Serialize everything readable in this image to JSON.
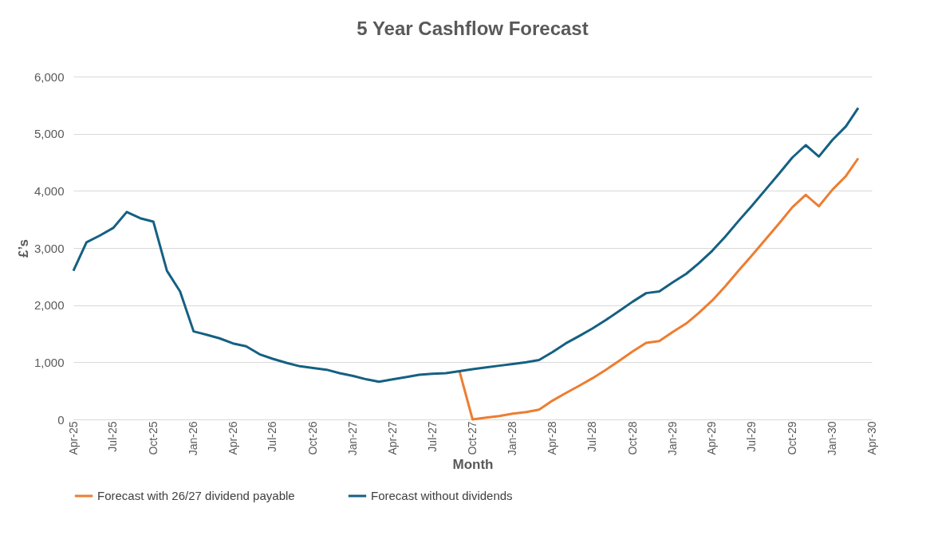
{
  "chart_data": {
    "type": "line",
    "title": "5 Year Cashflow Forecast",
    "xlabel": "Month",
    "ylabel": "£’s",
    "x": [
      "2025-04",
      "2025-05",
      "2025-06",
      "2025-07",
      "2025-08",
      "2025-09",
      "2025-10",
      "2025-11",
      "2025-12",
      "2026-01",
      "2026-02",
      "2026-03",
      "2026-04",
      "2026-05",
      "2026-06",
      "2026-07",
      "2026-08",
      "2026-09",
      "2026-10",
      "2026-11",
      "2026-12",
      "2027-01",
      "2027-02",
      "2027-03",
      "2027-04",
      "2027-05",
      "2027-06",
      "2027-07",
      "2027-08",
      "2027-09",
      "2027-10",
      "2027-11",
      "2027-12",
      "2028-01",
      "2028-02",
      "2028-03",
      "2028-04",
      "2028-05",
      "2028-06",
      "2028-07",
      "2028-08",
      "2028-09",
      "2028-10",
      "2028-11",
      "2028-12",
      "2029-01",
      "2029-02",
      "2029-03",
      "2029-04",
      "2029-05",
      "2029-06",
      "2029-07",
      "2029-08",
      "2029-09",
      "2029-10",
      "2029-11",
      "2029-12",
      "2030-01",
      "2030-02",
      "2030-03"
    ],
    "series": [
      {
        "name": "Forecast with 26/27 dividend payable",
        "color": "#ed7d31",
        "values": [
          null,
          null,
          null,
          null,
          null,
          null,
          null,
          null,
          null,
          null,
          null,
          null,
          null,
          null,
          null,
          null,
          null,
          null,
          null,
          null,
          null,
          null,
          null,
          null,
          null,
          null,
          null,
          null,
          null,
          845,
          0,
          30,
          60,
          100,
          130,
          170,
          330,
          460,
          590,
          720,
          870,
          1030,
          1190,
          1340,
          1370,
          1530,
          1680,
          1860,
          2080,
          2330,
          2610,
          2870,
          3150,
          3430,
          3710,
          3930,
          3730,
          4020,
          4260,
          4570
        ]
      },
      {
        "name": "Forecast without dividends",
        "color": "#156082",
        "values": [
          2600,
          3100,
          3220,
          3350,
          3630,
          3520,
          3460,
          2600,
          2240,
          1540,
          1480,
          1420,
          1330,
          1280,
          1140,
          1060,
          990,
          930,
          900,
          870,
          810,
          760,
          700,
          660,
          700,
          740,
          780,
          800,
          810,
          845,
          880,
          910,
          940,
          970,
          1000,
          1040,
          1180,
          1330,
          1460,
          1590,
          1740,
          1900,
          2060,
          2210,
          2240,
          2400,
          2550,
          2730,
          2950,
          3200,
          3480,
          3740,
          4020,
          4300,
          4580,
          4800,
          4600,
          4890,
          5130,
          5450
        ]
      }
    ],
    "xlim": [
      "2025-04",
      "2030-04"
    ],
    "xticks": [
      {
        "value": "2025-04",
        "label": "Apr-25"
      },
      {
        "value": "2025-07",
        "label": "Jul-25"
      },
      {
        "value": "2025-10",
        "label": "Oct-25"
      },
      {
        "value": "2026-01",
        "label": "Jan-26"
      },
      {
        "value": "2026-04",
        "label": "Apr-26"
      },
      {
        "value": "2026-07",
        "label": "Jul-26"
      },
      {
        "value": "2026-10",
        "label": "Oct-26"
      },
      {
        "value": "2027-01",
        "label": "Jan-27"
      },
      {
        "value": "2027-04",
        "label": "Apr-27"
      },
      {
        "value": "2027-07",
        "label": "Jul-27"
      },
      {
        "value": "2027-10",
        "label": "Oct-27"
      },
      {
        "value": "2028-01",
        "label": "Jan-28"
      },
      {
        "value": "2028-04",
        "label": "Apr-28"
      },
      {
        "value": "2028-07",
        "label": "Jul-28"
      },
      {
        "value": "2028-10",
        "label": "Oct-28"
      },
      {
        "value": "2029-01",
        "label": "Jan-29"
      },
      {
        "value": "2029-04",
        "label": "Apr-29"
      },
      {
        "value": "2029-07",
        "label": "Jul-29"
      },
      {
        "value": "2029-10",
        "label": "Oct-29"
      },
      {
        "value": "2030-01",
        "label": "Jan-30"
      },
      {
        "value": "2030-04",
        "label": "Apr-30"
      }
    ],
    "ylim": [
      0,
      6000
    ],
    "yticks": [
      0,
      {
        "value": 1000,
        "label": "1,000"
      },
      {
        "value": 2000,
        "label": "2,000"
      },
      {
        "value": 3000,
        "label": "3,000"
      },
      {
        "value": 4000,
        "label": "4,000"
      },
      {
        "value": 5000,
        "label": "5,000"
      },
      {
        "value": 6000,
        "label": "6,000"
      }
    ],
    "grid": "y",
    "legend": "bottom",
    "marker": "none",
    "line_style": "solid"
  }
}
